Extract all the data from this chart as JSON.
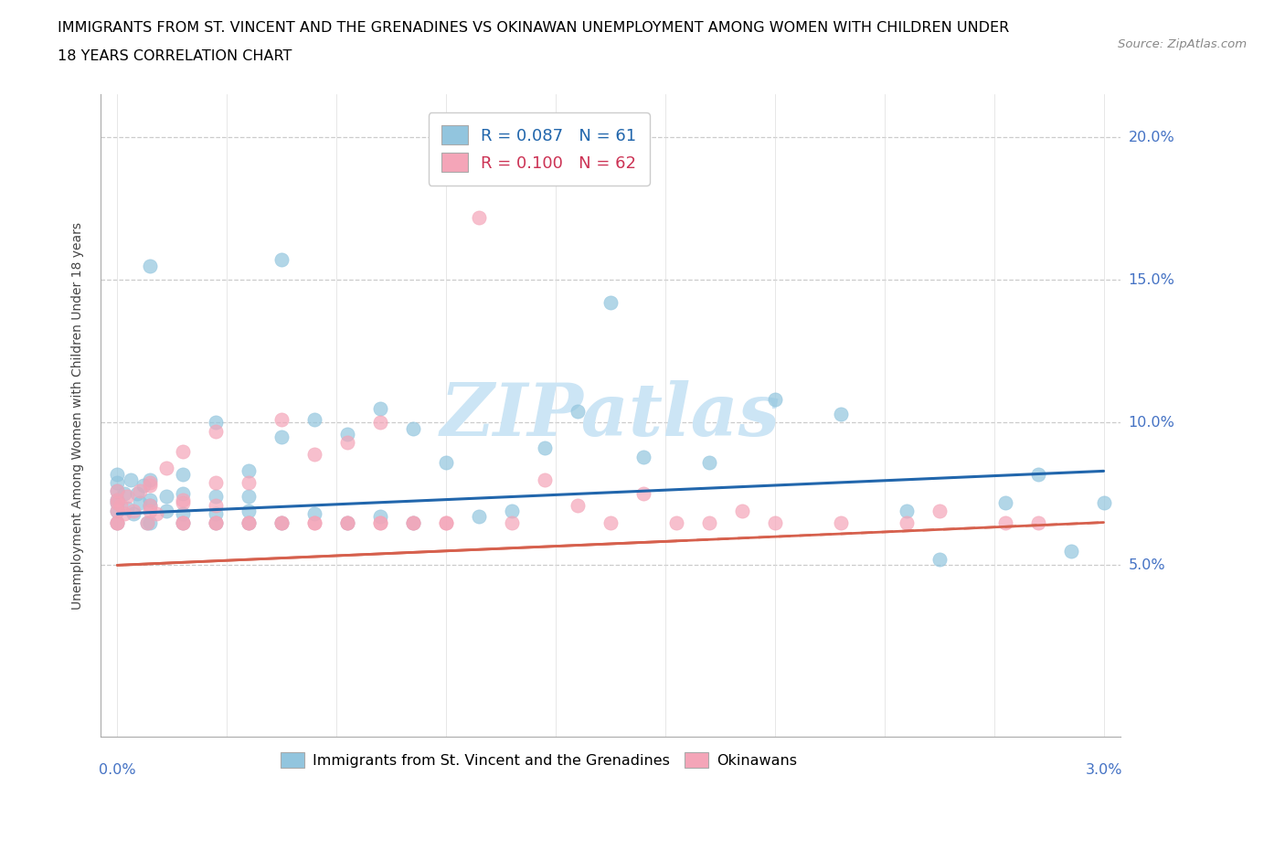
{
  "title_line1": "IMMIGRANTS FROM ST. VINCENT AND THE GRENADINES VS OKINAWAN UNEMPLOYMENT AMONG WOMEN WITH CHILDREN UNDER",
  "title_line2": "18 YEARS CORRELATION CHART",
  "source": "Source: ZipAtlas.com",
  "ylabel_text": "Unemployment Among Women with Children Under 18 years",
  "blue_color": "#92c5de",
  "pink_color": "#f4a5b8",
  "trend_blue_color": "#2166ac",
  "trend_pink_color": "#d6604d",
  "watermark_color": "#cce5f5",
  "legend_blue_text": "R = 0.087   N = 61",
  "legend_pink_text": "R = 0.100   N = 62",
  "blue_label": "Immigrants from St. Vincent and the Grenadines",
  "pink_label": "Okinawans",
  "x_min": 0.0,
  "x_max": 0.03,
  "y_min": -0.01,
  "y_max": 0.215,
  "y_ticks": [
    0.05,
    0.1,
    0.15,
    0.2
  ],
  "y_tick_labels": [
    "5.0%",
    "10.0%",
    "15.0%",
    "20.0%"
  ],
  "x_tick_labels_show": [
    "0.0%",
    "3.0%"
  ],
  "blue_trend": [
    0.068,
    0.083
  ],
  "pink_trend": [
    0.05,
    0.065
  ],
  "blue_x": [
    0.0002,
    0.0003,
    0.0004,
    0.0005,
    0.0006,
    0.0007,
    0.0008,
    0.0009,
    0.001,
    0.001,
    0.001,
    0.0015,
    0.0015,
    0.002,
    0.002,
    0.002,
    0.003,
    0.003,
    0.003,
    0.004,
    0.004,
    0.004,
    0.005,
    0.005,
    0.006,
    0.006,
    0.007,
    0.007,
    0.008,
    0.008,
    0.009,
    0.009,
    0.01,
    0.011,
    0.012,
    0.013,
    0.014,
    0.015,
    0.016,
    0.018,
    0.02,
    0.022,
    0.024,
    0.025,
    0.027,
    0.028,
    0.029,
    0.03,
    0.0,
    0.0,
    0.0,
    0.0,
    0.0,
    0.0,
    0.0,
    0.001,
    0.001,
    0.002,
    0.003,
    0.004,
    0.005
  ],
  "blue_y": [
    0.075,
    0.07,
    0.08,
    0.068,
    0.075,
    0.072,
    0.078,
    0.065,
    0.073,
    0.08,
    0.155,
    0.069,
    0.074,
    0.068,
    0.075,
    0.082,
    0.068,
    0.074,
    0.1,
    0.069,
    0.074,
    0.083,
    0.157,
    0.095,
    0.068,
    0.101,
    0.065,
    0.096,
    0.067,
    0.105,
    0.065,
    0.098,
    0.086,
    0.067,
    0.069,
    0.091,
    0.104,
    0.142,
    0.088,
    0.086,
    0.108,
    0.103,
    0.069,
    0.052,
    0.072,
    0.082,
    0.055,
    0.072,
    0.073,
    0.069,
    0.065,
    0.072,
    0.076,
    0.079,
    0.082,
    0.065,
    0.071,
    0.065,
    0.065,
    0.065,
    0.065
  ],
  "pink_x": [
    0.0001,
    0.0002,
    0.0003,
    0.0005,
    0.0007,
    0.0009,
    0.001,
    0.001,
    0.0012,
    0.0015,
    0.002,
    0.002,
    0.002,
    0.003,
    0.003,
    0.003,
    0.004,
    0.004,
    0.005,
    0.005,
    0.006,
    0.006,
    0.007,
    0.007,
    0.008,
    0.008,
    0.009,
    0.01,
    0.011,
    0.012,
    0.013,
    0.014,
    0.015,
    0.016,
    0.017,
    0.018,
    0.019,
    0.02,
    0.022,
    0.024,
    0.025,
    0.027,
    0.028,
    0.0,
    0.0,
    0.0,
    0.0,
    0.0,
    0.0,
    0.001,
    0.001,
    0.002,
    0.002,
    0.003,
    0.003,
    0.004,
    0.005,
    0.006,
    0.007,
    0.008,
    0.009,
    0.01
  ],
  "pink_y": [
    0.071,
    0.068,
    0.074,
    0.069,
    0.076,
    0.065,
    0.071,
    0.078,
    0.068,
    0.084,
    0.065,
    0.072,
    0.09,
    0.065,
    0.071,
    0.097,
    0.065,
    0.079,
    0.065,
    0.101,
    0.065,
    0.089,
    0.065,
    0.093,
    0.065,
    0.1,
    0.065,
    0.065,
    0.172,
    0.065,
    0.08,
    0.071,
    0.065,
    0.075,
    0.065,
    0.065,
    0.069,
    0.065,
    0.065,
    0.065,
    0.069,
    0.065,
    0.065,
    0.073,
    0.069,
    0.065,
    0.072,
    0.076,
    0.065,
    0.069,
    0.079,
    0.065,
    0.073,
    0.065,
    0.079,
    0.065,
    0.065,
    0.065,
    0.065,
    0.065,
    0.065,
    0.065
  ]
}
